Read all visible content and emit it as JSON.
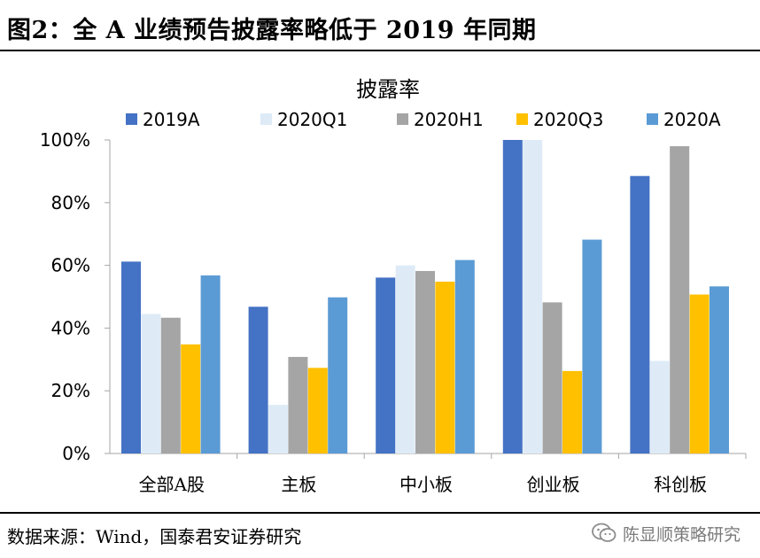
{
  "header": {
    "title": "图2：全 A 业绩预告披露率略低于 2019 年同期"
  },
  "footer": {
    "source": "数据来源：Wind，国泰君安证券研究",
    "watermark": "陈显顺策略研究",
    "watermark_icon": "wechat-icon"
  },
  "chart_data": {
    "type": "bar",
    "title": "披露率",
    "categories": [
      "全部A股",
      "主板",
      "中小板",
      "创业板",
      "科创板"
    ],
    "series": [
      {
        "name": "2019A",
        "color": "#4472C4",
        "values": [
          61.2,
          46.8,
          56.1,
          100.0,
          88.5
        ]
      },
      {
        "name": "2020Q1",
        "color": "#DEEBF7",
        "values": [
          44.5,
          15.5,
          60.0,
          100.0,
          29.5
        ]
      },
      {
        "name": "2020H1",
        "color": "#A5A5A5",
        "values": [
          43.3,
          30.8,
          58.2,
          48.2,
          98.0
        ]
      },
      {
        "name": "2020Q3",
        "color": "#FFC000",
        "values": [
          34.8,
          27.3,
          54.8,
          26.3,
          50.7
        ]
      },
      {
        "name": "2020A",
        "color": "#5B9BD5",
        "values": [
          56.8,
          49.8,
          61.7,
          68.2,
          53.3
        ]
      }
    ],
    "yticks": [
      "0%",
      "20%",
      "40%",
      "60%",
      "80%",
      "100%"
    ],
    "ylim": [
      0,
      100
    ],
    "grid": false,
    "legend": "top"
  }
}
